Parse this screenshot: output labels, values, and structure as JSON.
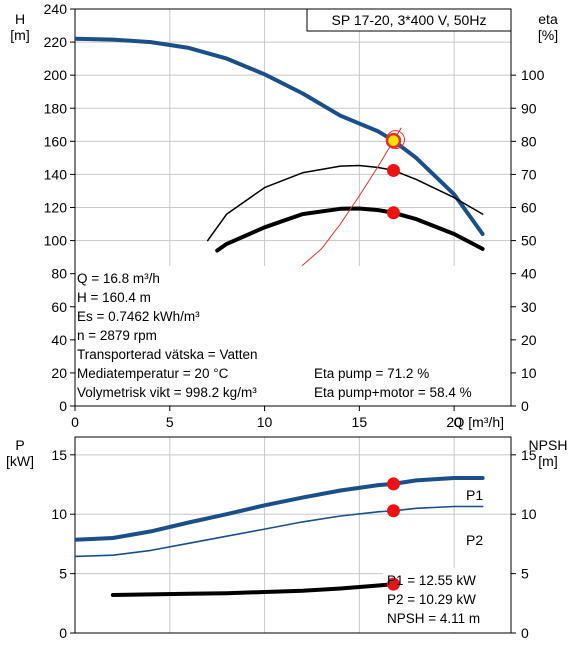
{
  "chart_data": [
    {
      "type": "line",
      "title": "SP 17-20, 3*400 V, 50Hz",
      "left_axis": {
        "label_line1": "H",
        "label_line2": "[m]",
        "range": [
          0,
          240
        ],
        "ticks": [
          0,
          20,
          40,
          60,
          80,
          100,
          120,
          140,
          160,
          180,
          200,
          220,
          240
        ]
      },
      "right_axis": {
        "label_line1": "eta",
        "label_line2": "[%]",
        "range": [
          0,
          120
        ],
        "ticks": [
          0,
          10,
          20,
          30,
          40,
          50,
          60,
          70,
          80,
          90,
          100
        ]
      },
      "x_axis": {
        "label": "Q [m³/h]",
        "range": [
          0,
          23
        ],
        "ticks": [
          0,
          5,
          10,
          15,
          20
        ]
      },
      "series": [
        {
          "axis": "left",
          "style": "thick-blue",
          "color": "#1a4f8a",
          "x": [
            0,
            2,
            4,
            6,
            8,
            10,
            12,
            14,
            16,
            16.8,
            18,
            20,
            21.5
          ],
          "y": [
            222,
            221.5,
            220,
            216.5,
            210,
            200.5,
            189,
            175.5,
            166,
            160.4,
            150,
            128,
            104
          ]
        },
        {
          "axis": "right",
          "style": "thin-black",
          "x": [
            7,
            8,
            10,
            12,
            14,
            15,
            16,
            16.8,
            18,
            20,
            21.5
          ],
          "y": [
            50,
            58,
            66,
            70.5,
            72.5,
            72.7,
            72.1,
            71.2,
            68.5,
            63,
            58
          ]
        },
        {
          "axis": "right",
          "style": "thick-black",
          "x": [
            7.5,
            8,
            10,
            12,
            14,
            15,
            16,
            16.8,
            18,
            20,
            21.5
          ],
          "y": [
            47,
            49,
            54,
            58,
            59.6,
            59.7,
            59.2,
            58.4,
            56.5,
            52,
            47.5
          ]
        },
        {
          "axis": "left",
          "style": "thin-red",
          "x": [
            12,
            13,
            14,
            15,
            16,
            16.8,
            17.2
          ],
          "y": [
            85,
            95,
            110,
            127,
            145,
            160.4,
            168
          ]
        }
      ],
      "operating_points": [
        {
          "x": 16.8,
          "y": 160.4,
          "axis": "left",
          "kind": "duty"
        },
        {
          "x": 16.8,
          "y": 71.2,
          "axis": "right",
          "kind": "marker"
        },
        {
          "x": 16.8,
          "y": 58.4,
          "axis": "right",
          "kind": "marker"
        }
      ],
      "info_left": [
        "Q = 16.8 m³/h",
        "H = 160.4 m",
        "Es = 0.7462 kWh/m³",
        "n = 2879 rpm",
        "Transporterad vätska = Vatten",
        "Mediatemperatur = 20 °C",
        "Volymetrisk vikt = 998.2 kg/m³"
      ],
      "info_right": [
        "Eta pump = 71.2 %",
        "Eta pump+motor = 58.4 %"
      ]
    },
    {
      "type": "line",
      "left_axis": {
        "label_line1": "P",
        "label_line2": "[kW]",
        "range": [
          0,
          16.5
        ],
        "ticks": [
          0,
          5,
          10,
          15
        ]
      },
      "right_axis": {
        "label_line1": "NPSH",
        "label_line2": "[m]",
        "range": [
          0,
          16.5
        ],
        "ticks": [
          0,
          5,
          10,
          15
        ]
      },
      "x_axis": {
        "range": [
          0,
          23
        ]
      },
      "series": [
        {
          "name": "P1",
          "axis": "left",
          "style": "thick-blue",
          "color": "#1a4f8a",
          "x": [
            0,
            2,
            4,
            6,
            8,
            10,
            12,
            14,
            16,
            16.8,
            18,
            20,
            21.5
          ],
          "y": [
            7.85,
            8.0,
            8.55,
            9.3,
            10.0,
            10.75,
            11.4,
            12.0,
            12.45,
            12.55,
            12.85,
            13.05,
            13.05
          ]
        },
        {
          "name": "P2",
          "axis": "left",
          "style": "thin-blue",
          "color": "#1a4f8a",
          "x": [
            0,
            2,
            4,
            6,
            8,
            10,
            12,
            14,
            16,
            16.8,
            18,
            20,
            21.5
          ],
          "y": [
            6.45,
            6.55,
            6.95,
            7.55,
            8.15,
            8.75,
            9.35,
            9.85,
            10.2,
            10.29,
            10.5,
            10.65,
            10.65
          ]
        },
        {
          "axis": "right",
          "style": "thick-black",
          "x": [
            2,
            4,
            6,
            8,
            10,
            12,
            14,
            16,
            16.8
          ],
          "y": [
            3.2,
            3.25,
            3.3,
            3.35,
            3.45,
            3.55,
            3.75,
            4.0,
            4.11
          ]
        }
      ],
      "operating_points": [
        {
          "x": 16.8,
          "y": 12.55,
          "axis": "left"
        },
        {
          "x": 16.8,
          "y": 10.29,
          "axis": "left"
        },
        {
          "x": 16.8,
          "y": 4.11,
          "axis": "right"
        }
      ],
      "info_right": [
        "P1 = 12.55 kW",
        "P2 = 10.29 kW",
        "NPSH = 4.11 m"
      ]
    }
  ]
}
